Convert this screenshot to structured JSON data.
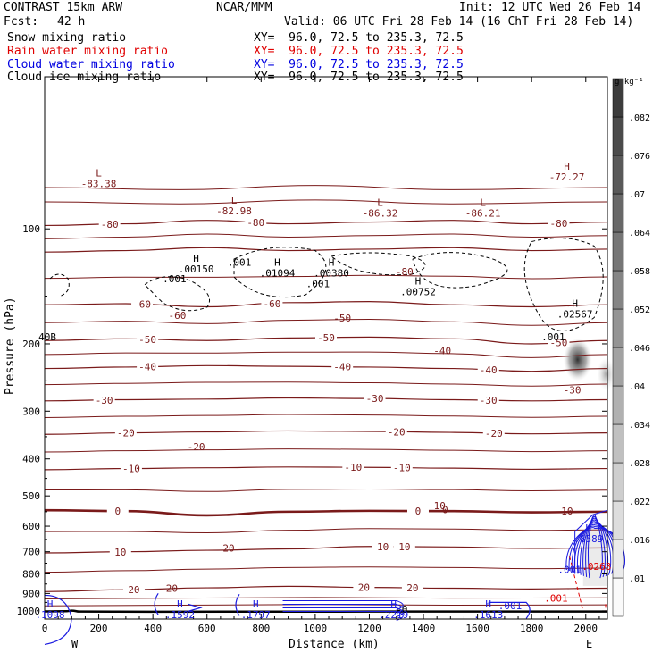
{
  "header": {
    "model": "CONTRAST 15km ARW",
    "org": "NCAR/MMM",
    "init": "Init: 12 UTC Wed 26 Feb 14",
    "fcst_label": "Fcst:",
    "fcst_value": "42 h",
    "valid": "Valid: 06 UTC Fri 28 Feb 14 (16 ChT Fri 28 Feb 14)"
  },
  "fields": [
    {
      "name": "Snow mixing ratio",
      "xy": "XY=  96.0, 72.5 to 235.3, 72.5",
      "color": "#000000"
    },
    {
      "name": "Rain water mixing ratio",
      "xy": "XY=  96.0, 72.5 to 235.3, 72.5",
      "color": "#e00000"
    },
    {
      "name": "Cloud water mixing ratio",
      "xy": "XY=  96.0, 72.5 to 235.3, 72.5",
      "color": "#0000e0"
    },
    {
      "name": "Cloud ice mixing ratio",
      "xy": "XY=  96.0, 72.5 to 235.3, 72.5",
      "color": "#000000"
    }
  ],
  "colors": {
    "temperature": "#7a1a1a",
    "cloud_water": "#1a1ae0",
    "rain_water": "#e00000",
    "ice": "#000000"
  },
  "chart_data": {
    "type": "contour-cross-section",
    "xlabel": "Distance (km)",
    "ylabel": "Pressure (hPa)",
    "xlim": [
      0,
      2080
    ],
    "ylim": [
      1050,
      40
    ],
    "yscale": "log",
    "x_ticks": [
      0,
      200,
      400,
      600,
      800,
      1000,
      1200,
      1400,
      1600,
      1800,
      2000
    ],
    "y_ticks": [
      100,
      200,
      300,
      400,
      500,
      600,
      700,
      800,
      900,
      1000
    ],
    "x_end_labels": {
      "left": "W",
      "right": "E"
    },
    "colorbar": {
      "unit": "g kg⁻¹",
      "levels": [
        ".01",
        ".016",
        ".022",
        ".028",
        ".034",
        ".04",
        ".046",
        ".052",
        ".058",
        ".064",
        ".07",
        ".076",
        ".082"
      ]
    },
    "temperature_contours": [
      {
        "level": -80,
        "label": "-80",
        "points": [
          [
            0,
            98
          ],
          [
            300,
            97
          ],
          [
            600,
            95
          ],
          [
            900,
            97
          ],
          [
            1200,
            96
          ],
          [
            1500,
            95
          ],
          [
            1800,
            97
          ],
          [
            2080,
            96
          ]
        ]
      },
      {
        "level": -70,
        "label": "",
        "points": [
          [
            0,
            115
          ],
          [
            300,
            114
          ],
          [
            600,
            112
          ],
          [
            900,
            114
          ],
          [
            1200,
            113
          ],
          [
            1500,
            112
          ],
          [
            1800,
            114
          ],
          [
            2080,
            113
          ]
        ]
      },
      {
        "level": -60,
        "label": "-60",
        "points": [
          [
            0,
            158
          ],
          [
            300,
            157
          ],
          [
            600,
            160
          ],
          [
            900,
            156
          ],
          [
            1200,
            155
          ],
          [
            1500,
            158
          ],
          [
            1800,
            160
          ],
          [
            2080,
            158
          ]
        ]
      },
      {
        "level": -50,
        "label": "-50",
        "points": [
          [
            0,
            196
          ],
          [
            300,
            194
          ],
          [
            600,
            196
          ],
          [
            900,
            193
          ],
          [
            1200,
            192
          ],
          [
            1500,
            194
          ],
          [
            1800,
            200
          ],
          [
            2080,
            196
          ]
        ]
      },
      {
        "level": -40,
        "label": "-40",
        "points": [
          [
            0,
            232
          ],
          [
            300,
            230
          ],
          [
            600,
            228
          ],
          [
            900,
            229
          ],
          [
            1200,
            230
          ],
          [
            1500,
            232
          ],
          [
            1800,
            236
          ],
          [
            2080,
            232
          ]
        ]
      },
      {
        "level": -30,
        "label": "-30",
        "points": [
          [
            0,
            282
          ],
          [
            300,
            280
          ],
          [
            600,
            279
          ],
          [
            900,
            277
          ],
          [
            1200,
            278
          ],
          [
            1500,
            280
          ],
          [
            1800,
            282
          ],
          [
            2080,
            280
          ]
        ]
      },
      {
        "level": -20,
        "label": "-20",
        "points": [
          [
            0,
            345
          ],
          [
            300,
            342
          ],
          [
            600,
            340
          ],
          [
            900,
            338
          ],
          [
            1200,
            339
          ],
          [
            1500,
            341
          ],
          [
            1800,
            344
          ],
          [
            2080,
            342
          ]
        ]
      },
      {
        "level": -10,
        "label": "-10",
        "points": [
          [
            0,
            427
          ],
          [
            300,
            424
          ],
          [
            600,
            422
          ],
          [
            900,
            420
          ],
          [
            1200,
            421
          ],
          [
            1500,
            423
          ],
          [
            1800,
            426
          ],
          [
            2080,
            424
          ]
        ]
      },
      {
        "level": 0,
        "label": "0",
        "points": [
          [
            0,
            545
          ],
          [
            300,
            548
          ],
          [
            600,
            562
          ],
          [
            900,
            550
          ],
          [
            1200,
            547
          ],
          [
            1500,
            548
          ],
          [
            1800,
            552
          ],
          [
            2080,
            550
          ]
        ]
      },
      {
        "level": 10,
        "label": "10",
        "points": [
          [
            0,
            705
          ],
          [
            300,
            700
          ],
          [
            600,
            694
          ],
          [
            900,
            688
          ],
          [
            1200,
            678
          ],
          [
            1500,
            680
          ],
          [
            1800,
            686
          ],
          [
            2080,
            684
          ]
        ]
      },
      {
        "level": 20,
        "label": "20",
        "points": [
          [
            0,
            890
          ],
          [
            300,
            880
          ],
          [
            600,
            870
          ],
          [
            900,
            862
          ],
          [
            1200,
            868
          ],
          [
            1500,
            872
          ],
          [
            1800,
            876
          ],
          [
            2080,
            872
          ]
        ]
      }
    ],
    "highs_lows": [
      {
        "type": "L",
        "x": 200,
        "p": 73,
        "value": "-83.38"
      },
      {
        "type": "L",
        "x": 700,
        "p": 86,
        "value": "-82.98"
      },
      {
        "type": "L",
        "x": 1240,
        "p": 87,
        "value": "-86.32"
      },
      {
        "type": "L",
        "x": 1620,
        "p": 87,
        "value": "-86.21"
      },
      {
        "type": "H",
        "x": 1930,
        "p": 70,
        "value": "-72.27"
      },
      {
        "type": "H",
        "x": 560,
        "p": 122,
        "value": ".00150"
      },
      {
        "type": "H",
        "x": 860,
        "p": 125,
        "value": ".01094"
      },
      {
        "type": "H",
        "x": 1060,
        "p": 125,
        "value": ".00380"
      },
      {
        "type": "H",
        "x": 1380,
        "p": 140,
        "value": ".00752"
      },
      {
        "type": "H",
        "x": 1960,
        "p": 160,
        "value": ".02567"
      },
      {
        "type": "H",
        "x": 0,
        "p": 980,
        "value": ".1098"
      },
      {
        "type": "H",
        "x": 500,
        "p": 980,
        "value": ".1592"
      },
      {
        "type": "H",
        "x": 780,
        "p": 980,
        "value": ".1797"
      },
      {
        "type": "H",
        "x": 1290,
        "p": 980,
        "value": ".2219"
      },
      {
        "type": "H",
        "x": 1640,
        "p": 980,
        "value": ".1613"
      },
      {
        "type": "H",
        "x": 2010,
        "p": 620,
        "value": ".8589"
      }
    ],
    "minor_labels": [
      ".001",
      ".001",
      ".001",
      ".001",
      ".001",
      ".001",
      "-80",
      "-60",
      "-50",
      "-40",
      "-30",
      "-20",
      "-10",
      "10",
      "20",
      "20",
      "-0",
      "0",
      "40B",
      ".001",
      ".0263"
    ]
  }
}
